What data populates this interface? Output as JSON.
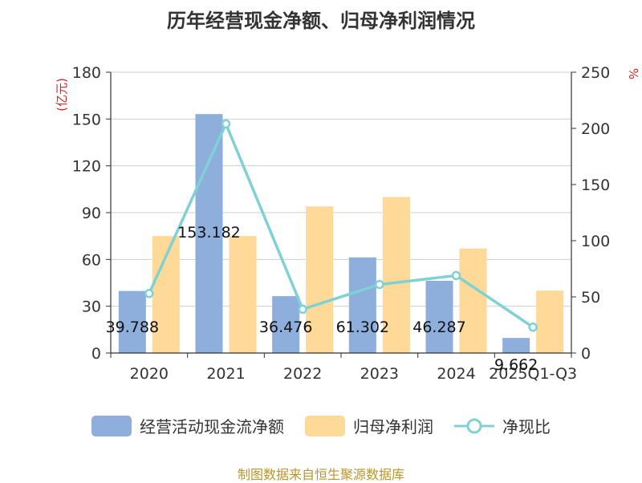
{
  "chart_data": {
    "type": "bar",
    "title": "历年经营现金净额、归母净利润情况",
    "categories": [
      "2020",
      "2021",
      "2022",
      "2023",
      "2024",
      "2025Q1-Q3"
    ],
    "series": [
      {
        "name": "经营活动现金流净额",
        "type": "bar",
        "axis": "left",
        "color": "#8eaedc",
        "values": [
          39.788,
          153.182,
          36.476,
          61.302,
          46.287,
          9.662
        ],
        "labels": [
          "39.788",
          "153.182",
          "36.476",
          "61.302",
          "46.287",
          "9.662"
        ]
      },
      {
        "name": "归母净利润",
        "type": "bar",
        "axis": "left",
        "color": "#ffd997",
        "values": [
          75,
          75,
          94,
          100,
          67,
          40
        ]
      },
      {
        "name": "净现比",
        "type": "line",
        "axis": "right",
        "color": "#7fd1d6",
        "values": [
          53,
          204,
          39,
          61,
          69,
          23
        ]
      }
    ],
    "y_left": {
      "unit_label": "(亿元)",
      "min": 0,
      "max": 180,
      "ticks": [
        0,
        30,
        60,
        90,
        120,
        150,
        180
      ]
    },
    "y_right": {
      "unit_label": "%",
      "min": 0,
      "max": 250,
      "ticks": [
        0,
        50,
        100,
        150,
        200,
        250
      ]
    },
    "grid": true,
    "legend_position": "bottom"
  },
  "footer": {
    "source": "制图数据来自恒生聚源数据库"
  }
}
